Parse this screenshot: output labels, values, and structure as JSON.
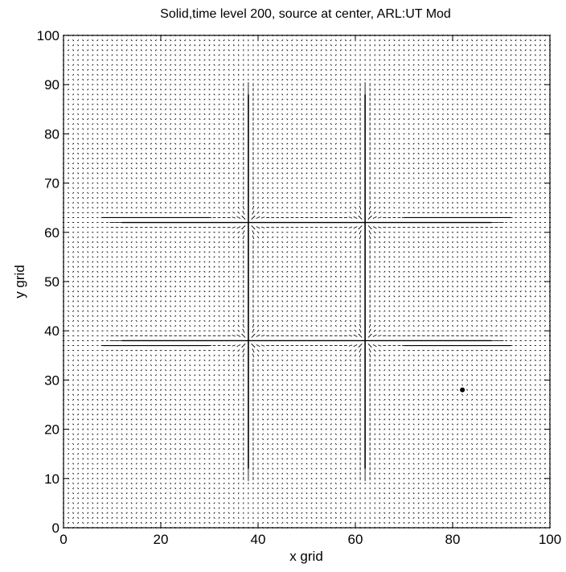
{
  "chart_data": {
    "type": "quiver",
    "title": "Solid,time level 200, source at center, ARL:UT Mod",
    "xlabel": "x grid",
    "ylabel": "y grid",
    "xlim": [
      0,
      100
    ],
    "ylim": [
      0,
      100
    ],
    "x_ticks": [
      0,
      20,
      40,
      60,
      80,
      100
    ],
    "y_ticks": [
      0,
      10,
      20,
      30,
      40,
      50,
      60,
      70,
      80,
      90,
      100
    ],
    "x_tick_labels": [
      "0",
      "20",
      "40",
      "60",
      "80",
      "100"
    ],
    "y_tick_labels": [
      "0",
      "10",
      "20",
      "30",
      "40",
      "50",
      "60",
      "70",
      "80",
      "90",
      "100"
    ],
    "grid": false,
    "field": {
      "grid_spacing": 1,
      "vertical_fronts_x": [
        38,
        62
      ],
      "horizontal_fronts_y": [
        38,
        62
      ],
      "front_extent": [
        10,
        90
      ],
      "interaction_centers": [
        [
          38,
          38
        ],
        [
          38,
          62
        ],
        [
          62,
          38
        ],
        [
          62,
          62
        ]
      ],
      "outer_horizontal_fronts": [
        {
          "y": 37,
          "x_range": [
            8,
            30
          ]
        },
        {
          "y": 63,
          "x_range": [
            8,
            30
          ]
        },
        {
          "y": 37,
          "x_range": [
            70,
            92
          ]
        },
        {
          "y": 63,
          "x_range": [
            70,
            92
          ]
        }
      ],
      "marker": {
        "x": 82,
        "y": 28
      }
    },
    "colors": {
      "arrows": "#000000",
      "background": "#ffffff",
      "axes": "#000000"
    }
  }
}
